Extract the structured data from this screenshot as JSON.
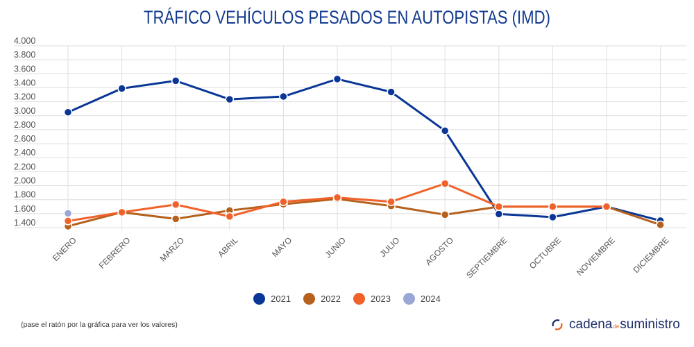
{
  "chart_data": {
    "type": "line",
    "title": "TRÁFICO VEHÍCULOS PESADOS EN AUTOPISTAS (IMD)",
    "xlabel": "",
    "ylabel": "",
    "categories": [
      "ENERO",
      "FEBRERO",
      "MARZO",
      "ABRIL",
      "MAYO",
      "JUNIO",
      "JULIO",
      "AGOSTO",
      "SEPTIEMBRE",
      "OCTUBRE",
      "NOVIEMBRE",
      "DICIEMBRE"
    ],
    "ylim": [
      1400,
      4000
    ],
    "yticks": [
      "1.400",
      "1.600",
      "1.800",
      "2.000",
      "2.200",
      "2.400",
      "2.600",
      "2.800",
      "3.000",
      "3.200",
      "3.400",
      "3.600",
      "3.800",
      "4.000"
    ],
    "grid": true,
    "legend_position": "bottom",
    "series": [
      {
        "name": "2021",
        "color": "#0a3696",
        "values": [
          3050,
          3390,
          3500,
          3235,
          3275,
          3525,
          3340,
          2785,
          1595,
          1550,
          1700,
          1500
        ]
      },
      {
        "name": "2022",
        "color": "#b5601c",
        "values": [
          1420,
          1620,
          1525,
          1645,
          1735,
          1810,
          1710,
          1585,
          1700,
          1700,
          1700,
          1440
        ]
      },
      {
        "name": "2023",
        "color": "#f0622a",
        "values": [
          1495,
          1620,
          1730,
          1560,
          1770,
          1830,
          1770,
          2030,
          1700,
          1700,
          1700,
          null
        ]
      },
      {
        "name": "2024",
        "color": "#9aa6d4",
        "values": [
          1605,
          null,
          null,
          null,
          null,
          null,
          null,
          null,
          null,
          null,
          null,
          null
        ]
      }
    ]
  },
  "note": "(pase el ratón por la gráfica para ver los valores)",
  "logo": {
    "part1": "cadena",
    "part2": "de",
    "part3": "suministro"
  }
}
